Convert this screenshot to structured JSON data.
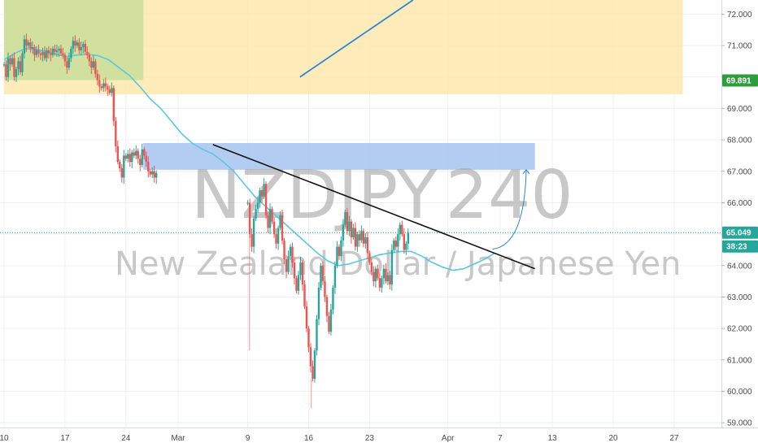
{
  "chart_data": {
    "type": "candlestick",
    "watermark_symbol": "NZDJPY",
    "watermark_interval": "240",
    "watermark_name": "New Zealand Dollar / Japanese Yen",
    "y_axis": {
      "ticks": [
        "59.000",
        "60.000",
        "61.000",
        "62.000",
        "63.000",
        "64.000",
        "65.000",
        "66.000",
        "67.000",
        "68.000",
        "69.000",
        "70.000",
        "71.000",
        "72.000"
      ],
      "ylim": [
        58.85,
        72.45
      ]
    },
    "x_axis": {
      "ticks": [
        "10",
        "17",
        "24",
        "Mar",
        "9",
        "16",
        "23",
        "Apr",
        "7",
        "13",
        "20",
        "27"
      ],
      "range_days": [
        "2020-02-10",
        "2020-04-28"
      ]
    },
    "price_labels": [
      {
        "value": "69.891",
        "color": "#2e9e3c"
      },
      {
        "value": "65.049",
        "color": "#26a69a"
      },
      {
        "value": "38:23",
        "color": "#26a69a"
      }
    ],
    "colors": {
      "up": "#26a69a",
      "down": "#ef5350",
      "ma": "#5bc8dc",
      "trendline": "#111111",
      "resistance_zone": "#a6c3ee",
      "supply_zone": "#fde6a8",
      "green_zone": "#c5dd98",
      "current_price": "#26a69a"
    },
    "zones": [
      {
        "name": "supply-zone",
        "x0": "2020-02-10",
        "x1": "2020-04-28",
        "y0": 69.45,
        "y1": 72.45
      },
      {
        "name": "green-zone",
        "x0": "2020-02-10",
        "x1": "2020-02-26",
        "y0": 69.9,
        "y1": 72.45
      },
      {
        "name": "resistance-zone",
        "x0": "2020-02-26",
        "x1": "2020-04-11",
        "y0": 67.05,
        "y1": 67.9
      }
    ],
    "trendline": {
      "from": [
        "2020-03-05",
        67.85
      ],
      "to": [
        "2020-04-11",
        63.9
      ]
    },
    "blue_line": {
      "from": [
        "2020-03-15",
        70.0
      ],
      "to": [
        "2020-03-28",
        72.45
      ]
    },
    "projection_arrow": {
      "from": [
        "2020-04-08",
        64.6
      ],
      "to": [
        "2020-04-10",
        67.05
      ]
    },
    "current_price": 65.049,
    "ma_values": [
      70.55,
      70.75,
      70.9,
      70.88,
      70.82,
      70.72,
      70.65,
      70.7,
      70.72,
      70.68,
      70.55,
      70.3,
      70.05,
      69.7,
      69.3,
      69.0,
      68.6,
      68.2,
      67.9,
      67.7,
      67.55,
      67.3,
      67.0,
      66.6,
      66.2,
      65.9,
      65.6,
      65.3,
      65.0,
      64.7,
      64.4,
      64.15,
      64.0,
      64.05,
      64.15,
      64.25,
      64.35,
      64.4,
      64.45,
      64.45,
      64.3,
      64.1,
      63.95,
      63.85,
      63.9,
      64.05,
      64.2,
      64.4
    ],
    "ma_start": "2020-02-10",
    "candles_4h": [
      [
        "2020-02-10",
        [
          70.4,
          70.0,
          70.6,
          70.4,
          70.6,
          70.0,
          70.25,
          70.5,
          70.15,
          70.75,
          71.2,
          71.0,
          71.1,
          70.9,
          70.95,
          70.7,
          70.85,
          70.75,
          70.7,
          70.8,
          70.6,
          70.85,
          70.75,
          70.7,
          70.9,
          70.8,
          70.85,
          70.9,
          70.75,
          70.7,
          70.5,
          70.3,
          70.6,
          70.9,
          71.15,
          71.0,
          71.1,
          70.85,
          70.95,
          71.05,
          70.8,
          70.7,
          70.5,
          70.3,
          70.5,
          70.1,
          69.9,
          69.7,
          69.65,
          69.8,
          69.7,
          69.6,
          69.5,
          69.65,
          68.6,
          67.8,
          67.3,
          67.1,
          66.8,
          67.5,
          67.4,
          67.55,
          67.3,
          67.6,
          67.5,
          67.65,
          67.4,
          67.2,
          67.7,
          67.5,
          67.3,
          67.0,
          66.9,
          67.0,
          66.8,
          66.95
        ]
      ],
      [
        "2020-03-09",
        [
          66.0,
          65.0,
          64.6,
          65.5,
          65.8,
          66.0,
          66.4,
          66.2,
          66.6,
          65.6,
          65.2,
          65.8,
          65.4,
          65.0,
          64.7,
          65.2,
          65.6,
          64.8,
          64.2,
          63.8,
          64.3,
          64.6,
          64.1,
          63.6,
          63.2,
          63.7,
          64.1,
          63.4,
          62.7,
          62.0,
          61.4,
          60.8,
          60.4,
          61.3,
          62.3,
          63.3,
          64.0,
          63.5,
          63.0,
          62.4,
          61.9,
          62.6,
          63.3,
          64.0,
          64.6,
          64.3,
          64.8,
          65.3,
          65.7,
          65.1,
          65.4,
          64.9,
          65.2,
          64.6,
          65.0,
          64.8,
          65.1,
          64.7,
          64.9,
          64.4,
          64.1,
          63.8,
          63.5,
          63.9,
          63.6,
          63.3,
          63.6,
          63.9,
          63.5,
          63.7,
          63.4,
          64.5,
          64.8,
          64.6,
          65.0,
          65.3,
          65.0,
          64.5,
          64.7,
          65.05
        ]
      ]
    ]
  }
}
